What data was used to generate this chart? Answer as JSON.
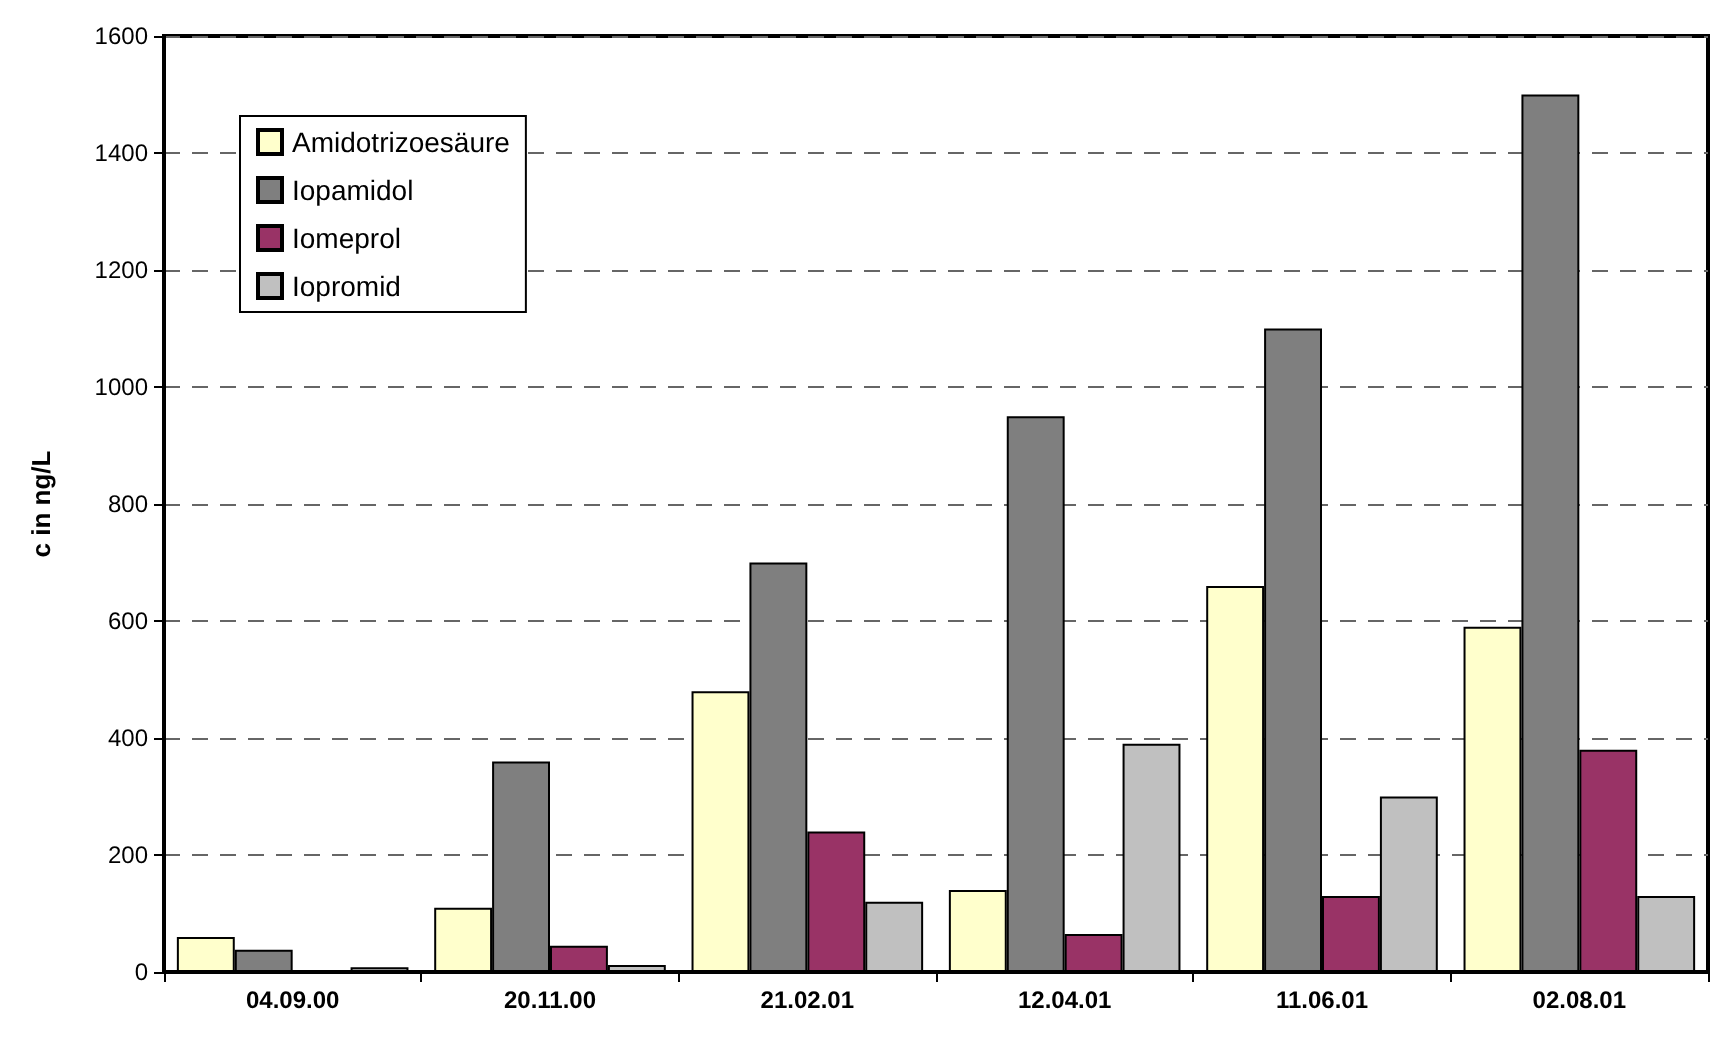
{
  "chart_data": {
    "type": "bar",
    "ylabel": "c in ng/L",
    "categories": [
      "04.09.00",
      "20.11.00",
      "21.02.01",
      "12.04.01",
      "11.06.01",
      "02.08.01"
    ],
    "series": [
      {
        "name": "Amidotrizoesäure",
        "color": "#ffffcc",
        "values": [
          60,
          110,
          480,
          140,
          660,
          590
        ]
      },
      {
        "name": "Iopamidol",
        "color": "#7f7f7f",
        "values": [
          38,
          360,
          700,
          950,
          1100,
          1500
        ]
      },
      {
        "name": "Iomeprol",
        "color": "#993366",
        "values": [
          null,
          45,
          240,
          65,
          130,
          380
        ]
      },
      {
        "name": "Iopromid",
        "color": "#c0c0c0",
        "values": [
          8,
          12,
          120,
          390,
          300,
          130
        ]
      }
    ],
    "ylim": [
      0,
      1600
    ],
    "yticks": [
      0,
      200,
      400,
      600,
      800,
      1000,
      1200,
      1400,
      1600
    ],
    "grid": "y",
    "legend": "top left"
  }
}
